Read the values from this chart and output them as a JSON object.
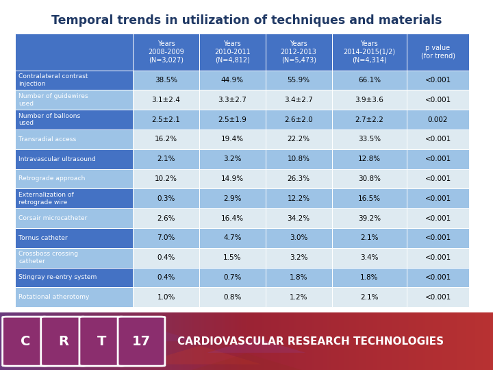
{
  "title": "Temporal trends in utilization of techniques and materials",
  "col_headers": [
    "",
    "Years\n2008-2009\n(N=3,027)",
    "Years\n2010-2011\n(N=4,812)",
    "Years\n2012-2013\n(N=5,473)",
    "Years\n2014-2015(1/2)\n(N=4,314)",
    "p value\n(for trend)"
  ],
  "rows": [
    [
      "Contralateral contrast\ninjection",
      "38.5%",
      "44.9%",
      "55.9%",
      "66.1%",
      "<0.001"
    ],
    [
      "Number of guidewires\nused",
      "3.1±2.4",
      "3.3±2.7",
      "3.4±2.7",
      "3.9±3.6",
      "<0.001"
    ],
    [
      "Number of balloons\nused",
      "2.5±2.1",
      "2.5±1.9",
      "2.6±2.0",
      "2.7±2.2",
      "0.002"
    ],
    [
      "Transradial access",
      "16.2%",
      "19.4%",
      "22.2%",
      "33.5%",
      "<0.001"
    ],
    [
      "Intravascular ultrasound",
      "2.1%",
      "3.2%",
      "10.8%",
      "12.8%",
      "<0.001"
    ],
    [
      "Retrograde approach",
      "10.2%",
      "14.9%",
      "26.3%",
      "30.8%",
      "<0.001"
    ],
    [
      "Externalization of\nretrograde wire",
      "0.3%",
      "2.9%",
      "12.2%",
      "16.5%",
      "<0.001"
    ],
    [
      "Corsair microcatheter",
      "2.6%",
      "16.4%",
      "34.2%",
      "39.2%",
      "<0.001"
    ],
    [
      "Tornus catheter",
      "7.0%",
      "4.7%",
      "3.0%",
      "2.1%",
      "<0.001"
    ],
    [
      "Crossboss crossing\ncatheter",
      "0.4%",
      "1.5%",
      "3.2%",
      "3.4%",
      "<0.001"
    ],
    [
      "Stingray re-entry system",
      "0.4%",
      "0.7%",
      "1.8%",
      "1.8%",
      "<0.001"
    ],
    [
      "Rotational atherotomy",
      "1.0%",
      "0.8%",
      "1.2%",
      "2.1%",
      "<0.001"
    ]
  ],
  "header_bg": "#4472C4",
  "row_bg_dark": "#9DC3E6",
  "row_bg_light": "#DEEAF1",
  "row_label_bg_dark": "#4472C4",
  "row_label_bg_light": "#9DC3E6",
  "header_text_color": "#FFFFFF",
  "row_text_color": "#000000",
  "row_label_text_color": "#FFFFFF",
  "title_color": "#1F3864",
  "footer_bg_left": "#7B3B6E",
  "footer_bg_right": "#B03030",
  "footer_text": "CARDIOVASCULAR RESEARCH TECHNOLOGIES",
  "crt_letters": [
    "C",
    "R",
    "T"
  ],
  "crt_number": "17",
  "background_color": "#FFFFFF"
}
